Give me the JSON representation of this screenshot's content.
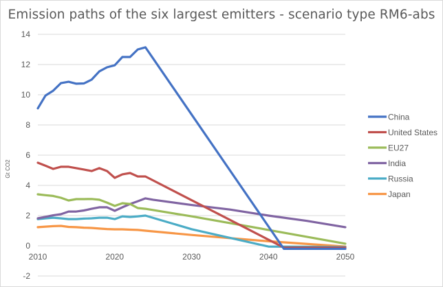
{
  "chart_data": {
    "type": "line",
    "title": "Emission paths of the six largest emitters - scenario type RM6-abs",
    "xlabel": "",
    "ylabel": "Gt CO2",
    "ylim": [
      -2,
      14
    ],
    "yticks": [
      -2,
      0,
      2,
      4,
      6,
      8,
      10,
      12,
      14
    ],
    "xlim": [
      2010,
      2050
    ],
    "xticks": [
      2010,
      2020,
      2030,
      2040,
      2050
    ],
    "grid": true,
    "legend_position": "right",
    "series": [
      {
        "name": "China",
        "color": "#4472c4",
        "points": [
          [
            2010,
            9.1
          ],
          [
            2011,
            9.95
          ],
          [
            2012,
            10.27
          ],
          [
            2013,
            10.77
          ],
          [
            2014,
            10.86
          ],
          [
            2015,
            10.73
          ],
          [
            2016,
            10.75
          ],
          [
            2017,
            11.0
          ],
          [
            2018,
            11.55
          ],
          [
            2019,
            11.82
          ],
          [
            2020,
            11.95
          ],
          [
            2021,
            12.5
          ],
          [
            2022,
            12.5
          ],
          [
            2023,
            13.0
          ],
          [
            2024,
            13.14
          ],
          [
            2025,
            12.4
          ],
          [
            2042,
            -0.2
          ],
          [
            2050,
            -0.2
          ]
        ]
      },
      {
        "name": "United States",
        "color": "#c0504d",
        "points": [
          [
            2010,
            5.5
          ],
          [
            2011,
            5.3
          ],
          [
            2012,
            5.09
          ],
          [
            2013,
            5.23
          ],
          [
            2014,
            5.23
          ],
          [
            2015,
            5.14
          ],
          [
            2016,
            5.05
          ],
          [
            2017,
            4.95
          ],
          [
            2018,
            5.14
          ],
          [
            2019,
            4.95
          ],
          [
            2020,
            4.5
          ],
          [
            2021,
            4.73
          ],
          [
            2022,
            4.82
          ],
          [
            2023,
            4.59
          ],
          [
            2024,
            4.59
          ],
          [
            2042,
            -0.12
          ],
          [
            2050,
            -0.12
          ]
        ]
      },
      {
        "name": "EU27",
        "color": "#9bbb59",
        "points": [
          [
            2010,
            3.41
          ],
          [
            2011,
            3.35
          ],
          [
            2012,
            3.3
          ],
          [
            2013,
            3.18
          ],
          [
            2014,
            3.0
          ],
          [
            2015,
            3.09
          ],
          [
            2016,
            3.09
          ],
          [
            2017,
            3.1
          ],
          [
            2018,
            3.05
          ],
          [
            2019,
            2.86
          ],
          [
            2020,
            2.64
          ],
          [
            2021,
            2.82
          ],
          [
            2022,
            2.77
          ],
          [
            2023,
            2.5
          ],
          [
            2024,
            2.45
          ],
          [
            2030,
            1.95
          ],
          [
            2040,
            1.05
          ],
          [
            2050,
            0.14
          ]
        ]
      },
      {
        "name": "India",
        "color": "#8064a2",
        "points": [
          [
            2010,
            1.82
          ],
          [
            2011,
            1.92
          ],
          [
            2012,
            2.02
          ],
          [
            2013,
            2.09
          ],
          [
            2014,
            2.27
          ],
          [
            2015,
            2.27
          ],
          [
            2016,
            2.34
          ],
          [
            2017,
            2.45
          ],
          [
            2018,
            2.55
          ],
          [
            2019,
            2.55
          ],
          [
            2020,
            2.32
          ],
          [
            2021,
            2.55
          ],
          [
            2022,
            2.77
          ],
          [
            2023,
            2.95
          ],
          [
            2024,
            3.14
          ],
          [
            2025,
            3.05
          ],
          [
            2030,
            2.7
          ],
          [
            2035,
            2.4
          ],
          [
            2040,
            2.0
          ],
          [
            2045,
            1.65
          ],
          [
            2050,
            1.23
          ]
        ]
      },
      {
        "name": "Russia",
        "color": "#4bacc6",
        "points": [
          [
            2010,
            1.77
          ],
          [
            2011,
            1.82
          ],
          [
            2012,
            1.86
          ],
          [
            2013,
            1.82
          ],
          [
            2014,
            1.77
          ],
          [
            2015,
            1.77
          ],
          [
            2016,
            1.8
          ],
          [
            2017,
            1.82
          ],
          [
            2018,
            1.86
          ],
          [
            2019,
            1.86
          ],
          [
            2020,
            1.77
          ],
          [
            2021,
            1.95
          ],
          [
            2022,
            1.91
          ],
          [
            2023,
            1.95
          ],
          [
            2024,
            2.0
          ],
          [
            2030,
            1.1
          ],
          [
            2040,
            -0.05
          ],
          [
            2050,
            -0.08
          ]
        ]
      },
      {
        "name": "Japan",
        "color": "#f79646",
        "points": [
          [
            2010,
            1.23
          ],
          [
            2011,
            1.27
          ],
          [
            2012,
            1.3
          ],
          [
            2013,
            1.32
          ],
          [
            2014,
            1.25
          ],
          [
            2015,
            1.23
          ],
          [
            2016,
            1.2
          ],
          [
            2017,
            1.18
          ],
          [
            2018,
            1.14
          ],
          [
            2019,
            1.11
          ],
          [
            2020,
            1.09
          ],
          [
            2021,
            1.09
          ],
          [
            2022,
            1.07
          ],
          [
            2023,
            1.05
          ],
          [
            2024,
            1.0
          ],
          [
            2030,
            0.72
          ],
          [
            2040,
            0.3
          ],
          [
            2050,
            -0.05
          ]
        ]
      }
    ]
  }
}
